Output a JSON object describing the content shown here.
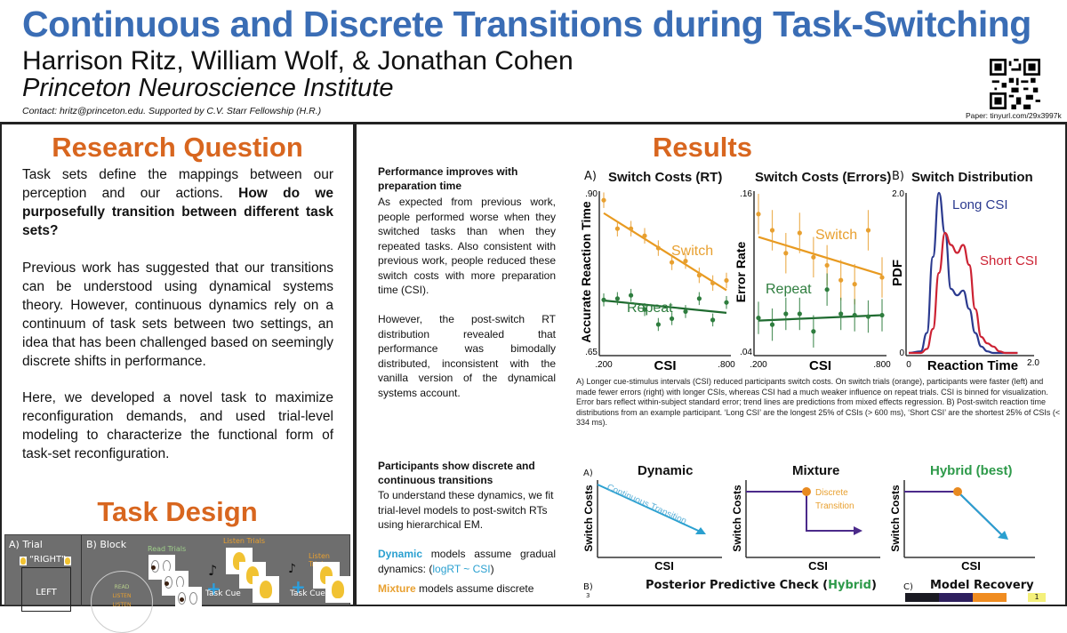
{
  "header": {
    "title": "Continuous and Discrete Transitions during Task-Switching",
    "authors": "Harrison Ritz, William Wolf, & Jonathan Cohen",
    "institution": "Princeton Neuroscience Institute",
    "contact": "Contact: hritz@princeton.edu. Supported by C.V. Starr Fellowship (H.R.)",
    "paper_link": "Paper: tinyurl.com/29x3997k",
    "qr_icon": "qr-code-icon"
  },
  "colors": {
    "title_blue": "#3a6db5",
    "section_orange": "#d8661f",
    "switch": "#e8a030",
    "repeat": "#2e7d3e",
    "long_csi": "#2b3a8f",
    "short_csi": "#cc2233",
    "dynamic": "#2aa0d0",
    "mixture_line": "#4b2a8a",
    "hybrid_green": "#2e9a4a"
  },
  "research_question": {
    "heading": "Research Question",
    "p1_plain": "Task sets define the mappings between our perception and our actions. ",
    "p1_bold": "How do we purposefully transition between different task sets?",
    "p2": "Previous work has suggested that our transitions can be understood using dynamical systems theory. However, continuous dynamics rely on a continuum of task sets between two settings, an idea that has been challenged based on seemingly discrete shifts in performance.",
    "p3": "Here, we developed a novel task to maximize reconfiguration demands, and used trial-level modeling to characterize the functional form of task-set reconfiguration."
  },
  "task_design": {
    "heading": "Task Design",
    "panel_a": "A) Trial",
    "trial_word": "“RIGHT”",
    "trial_box": "LEFT",
    "panel_b": "B) Block",
    "circle_labels": [
      "READ",
      "LISTEN",
      "LISTEN"
    ],
    "read_trials": "Read Trials",
    "listen_trials_1": "Listen Trials",
    "listen_trials_2": "Listen Trials",
    "task_cue_1": "Task Cue",
    "task_cue_2": "Task Cue"
  },
  "results": {
    "heading": "Results",
    "s1_heading": "Performance improves with preparation time",
    "s1_p1": "As expected from previous work, people performed worse when they switched tasks than when they repeated tasks. Also consistent with previous work, people reduced these switch costs with more preparation time (CSI).",
    "s1_p2": "However, the post-switch RT distribution revealed that performance was bimodally distributed, inconsistent with the vanilla version of the dynamical systems account.",
    "s2_heading": "Participants show discrete and continuous transitions",
    "s2_p1": "To understand these dynamics, we fit trial-level models to post-switch RTs using hierarchical EM.",
    "s2_dynamic_word": "Dynamic",
    "s2_dynamic_rest": " models assume gradual dynamics: (",
    "s2_dynamic_formula": "logRT ~ CSI",
    "s2_dynamic_close": ")",
    "s2_mixture_word": "Mixture",
    "s2_mixture_rest": " models assume discrete",
    "caption_a": "A) Longer cue-stimulus intervals (CSI) reduced participants switch costs. On switch trials (orange), participants were faster (left) and made fewer errors (right) with longer CSIs, whereas CSI had a much weaker influence on repeat trials. CSI is binned for visualization. Error bars reflect within-subject standard error; trend lines are predictions from mixed effects regression.",
    "caption_b": "B) Post-switch reaction time distributions from an example participant. ‘Long CSI’ are the longest 25% of CSIs (> 600 ms), ‘Short CSI’ are the shortest 25% of CSIs (< 334 ms).",
    "models": {
      "label": "A)",
      "dynamic_title": "Dynamic",
      "dynamic_annot": "Continuous Transition",
      "mixture_title": "Mixture",
      "mixture_annot_1": "Discrete",
      "mixture_annot_2": "Transition",
      "hybrid_title": "Hybrid (best)",
      "ylabel": "Switch Costs",
      "xlabel": "CSI"
    },
    "ppc": {
      "label": "B)",
      "title_plain": "Posterior Predictive Check (",
      "title_green": "Hybrid",
      "title_close": ")",
      "ytick": "3"
    },
    "recovery": {
      "label": "C)",
      "title": "Model Recovery",
      "cell_value": "1"
    }
  },
  "chart_data": [
    {
      "type": "scatter",
      "panel": "A)",
      "title": "Switch Costs (RT)",
      "xlabel": "CSI",
      "ylabel": "Accurate Reaction Time",
      "xticks": [
        ".200",
        ".800"
      ],
      "yticks": [
        ".65",
        ".90"
      ],
      "xlim": [
        0.2,
        0.8
      ],
      "ylim": [
        0.65,
        0.9
      ],
      "x": [
        0.2,
        0.267,
        0.333,
        0.4,
        0.467,
        0.533,
        0.6,
        0.667,
        0.733,
        0.8
      ],
      "series": [
        {
          "name": "Switch",
          "values": [
            0.886,
            0.842,
            0.842,
            0.831,
            0.812,
            0.79,
            0.792,
            0.77,
            0.758,
            0.762
          ],
          "err": 0.012,
          "trend": [
            0.866,
            0.747
          ]
        },
        {
          "name": "Repeat",
          "values": [
            0.732,
            0.734,
            0.739,
            0.717,
            0.694,
            0.703,
            0.714,
            0.734,
            0.701,
            0.728
          ],
          "err": 0.01,
          "trend": [
            0.731,
            0.712
          ]
        }
      ]
    },
    {
      "type": "scatter",
      "title": "Switch Costs (Errors)",
      "xlabel": "CSI",
      "ylabel": "Error Rate",
      "xticks": [
        ".200",
        ".800"
      ],
      "yticks": [
        ".04",
        ".16"
      ],
      "xlim": [
        0.2,
        0.8
      ],
      "ylim": [
        0.04,
        0.16
      ],
      "x": [
        0.2,
        0.267,
        0.333,
        0.4,
        0.467,
        0.533,
        0.6,
        0.667,
        0.733,
        0.8
      ],
      "series": [
        {
          "name": "Switch",
          "values": [
            0.143,
            0.131,
            0.114,
            0.129,
            0.111,
            0.105,
            0.094,
            0.091,
            0.131,
            0.096
          ],
          "err": 0.015,
          "trend": [
            0.126,
            0.098
          ]
        },
        {
          "name": "Repeat",
          "values": [
            0.066,
            0.061,
            0.069,
            0.069,
            0.056,
            0.087,
            0.069,
            0.068,
            0.067,
            0.068
          ],
          "err": 0.012,
          "trend": [
            0.064,
            0.068
          ]
        }
      ]
    },
    {
      "type": "line",
      "panel": "B)",
      "title": "Switch Distribution",
      "xlabel": "Reaction Time",
      "ylabel": "PDF",
      "xticks": [
        "0",
        "2.0"
      ],
      "yticks": [
        "0",
        "2.0"
      ],
      "xlim": [
        0,
        2.0
      ],
      "ylim": [
        0,
        2.0
      ],
      "x": [
        0,
        0.2,
        0.3,
        0.4,
        0.5,
        0.6,
        0.7,
        0.8,
        0.9,
        1.0,
        1.1,
        1.2,
        1.3,
        1.4,
        1.5,
        1.6,
        1.8
      ],
      "series": [
        {
          "name": "Long CSI",
          "values": [
            0,
            0.02,
            0.25,
            1.2,
            2.0,
            1.5,
            0.8,
            0.72,
            0.78,
            0.55,
            0.25,
            0.08,
            0.02,
            0,
            0,
            0,
            0
          ]
        },
        {
          "name": "Short CSI",
          "values": [
            0,
            0,
            0.05,
            0.3,
            1.0,
            1.5,
            1.35,
            1.25,
            1.35,
            1.1,
            0.55,
            0.2,
            0.12,
            0.08,
            0.02,
            0,
            0
          ]
        }
      ]
    }
  ]
}
